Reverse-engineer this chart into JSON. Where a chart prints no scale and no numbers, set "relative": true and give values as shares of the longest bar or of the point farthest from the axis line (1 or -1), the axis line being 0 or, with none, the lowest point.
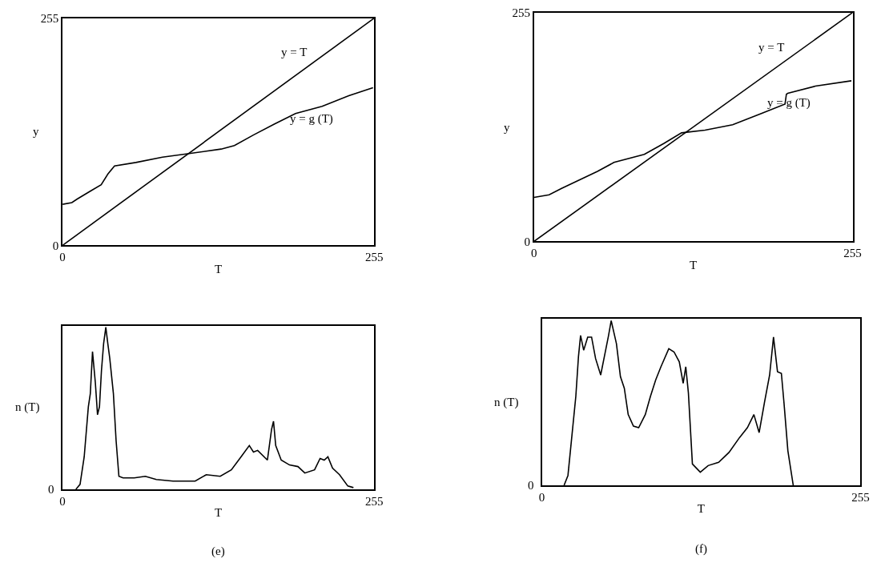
{
  "chart_data": [
    {
      "type": "line",
      "xlabel": "T",
      "ylabel": "y",
      "xlim": [
        0,
        255
      ],
      "ylim": [
        0,
        255
      ],
      "xticks": [
        0,
        255
      ],
      "yticks": [
        0,
        255
      ],
      "legend": false,
      "series": [
        {
          "name": "y = T",
          "color": "#000000",
          "x": [
            0,
            255
          ],
          "values": [
            0,
            255
          ]
        },
        {
          "name": "y = g (T)",
          "color": "#000000",
          "x": [
            0,
            7.6,
            12,
            22.9,
            31.6,
            37.1,
            42.5,
            60,
            81.7,
            103.5,
            129.7,
            140.6,
            156.4,
            173.2,
            190.6,
            212.4,
            234.2,
            254
          ],
          "values": [
            46,
            48,
            52,
            61,
            68,
            80,
            89,
            93,
            99,
            103,
            108,
            112,
            124,
            136,
            148,
            156,
            168,
            177
          ]
        }
      ]
    },
    {
      "type": "line",
      "xlabel": "T",
      "ylabel": "y",
      "xlim": [
        0,
        255
      ],
      "ylim": [
        0,
        255
      ],
      "xticks": [
        0,
        255
      ],
      "yticks": [
        0,
        255
      ],
      "legend": false,
      "series": [
        {
          "name": "y = T",
          "color": "#000000",
          "x": [
            0,
            255
          ],
          "values": [
            0,
            255
          ]
        },
        {
          "name": "y = g (T)",
          "color": "#000000",
          "x": [
            0,
            12.1,
            22.1,
            50.8,
            64,
            88.3,
            103.8,
            118.1,
            136.9,
            159,
            181.1,
            200.9,
            202,
            203.1,
            225.2,
            254
          ],
          "values": [
            49,
            52,
            59,
            78,
            88,
            97,
            109,
            121,
            124,
            130,
            142,
            153,
            164,
            165,
            173,
            179
          ]
        }
      ]
    },
    {
      "type": "line",
      "xlabel": "T",
      "ylabel": "n (T)",
      "xlim": [
        0,
        255
      ],
      "xticks": [
        0,
        255
      ],
      "relative": true,
      "legend": false,
      "annotations": [
        "0",
        "(e)"
      ],
      "series": [
        {
          "color": "#000000",
          "x": [
            10.9,
            14.3,
            17.7,
            21.1,
            22.7,
            24.5,
            26.8,
            28.6,
            30.2,
            31.8,
            33.6,
            35.4,
            37,
            38.6,
            41.6,
            43.8,
            46.1,
            49.5,
            58.6,
            67.7,
            76.7,
            90.4,
            108.5,
            117.6,
            129,
            138.1,
            146,
            152.8,
            156.2,
            159.6,
            167.6,
            171,
            172.6,
            174.4,
            178.9,
            185.7,
            192.6,
            198.2,
            206.2,
            210.7,
            214.1,
            217.1,
            220.9,
            226.6,
            233.4,
            238
          ],
          "values": [
            0,
            0.03,
            0.2,
            0.51,
            0.59,
            0.85,
            0.66,
            0.46,
            0.51,
            0.73,
            0.9,
            1,
            0.9,
            0.81,
            0.59,
            0.3,
            0.08,
            0.07,
            0.07,
            0.08,
            0.06,
            0.05,
            0.05,
            0.09,
            0.08,
            0.12,
            0.2,
            0.27,
            0.23,
            0.24,
            0.18,
            0.37,
            0.42,
            0.27,
            0.18,
            0.15,
            0.14,
            0.1,
            0.12,
            0.19,
            0.18,
            0.2,
            0.13,
            0.09,
            0.02,
            0.01
          ]
        }
      ]
    },
    {
      "type": "line",
      "xlabel": "T",
      "ylabel": "n (T)",
      "xlim": [
        0,
        255
      ],
      "xticks": [
        0,
        255
      ],
      "relative": true,
      "legend": false,
      "annotations": [
        "0",
        "(f)"
      ],
      "series": [
        {
          "color": "#000000",
          "x": [
            17.8,
            20.9,
            27.2,
            29.3,
            31,
            33.5,
            36.7,
            39.8,
            43,
            47.1,
            51.3,
            53.4,
            55.5,
            59.7,
            62.9,
            66,
            69.1,
            73.3,
            77.5,
            82.8,
            86.9,
            91.1,
            95.3,
            101.6,
            105.8,
            110,
            113.1,
            115.2,
            117.3,
            120.5,
            126.8,
            133.1,
            141.5,
            149.8,
            158.2,
            164.5,
            169.7,
            173.9,
            178.1,
            182.3,
            185.4,
            188.6,
            191.7,
            193.8,
            196.9,
            201.2
          ],
          "values": [
            0,
            0.06,
            0.54,
            0.78,
            0.91,
            0.82,
            0.9,
            0.9,
            0.77,
            0.67,
            0.83,
            0.91,
            1,
            0.86,
            0.66,
            0.59,
            0.43,
            0.36,
            0.35,
            0.43,
            0.54,
            0.64,
            0.72,
            0.83,
            0.81,
            0.75,
            0.62,
            0.72,
            0.56,
            0.13,
            0.08,
            0.12,
            0.14,
            0.2,
            0.29,
            0.35,
            0.43,
            0.32,
            0.5,
            0.67,
            0.9,
            0.69,
            0.68,
            0.5,
            0.21,
            0
          ]
        }
      ]
    }
  ]
}
